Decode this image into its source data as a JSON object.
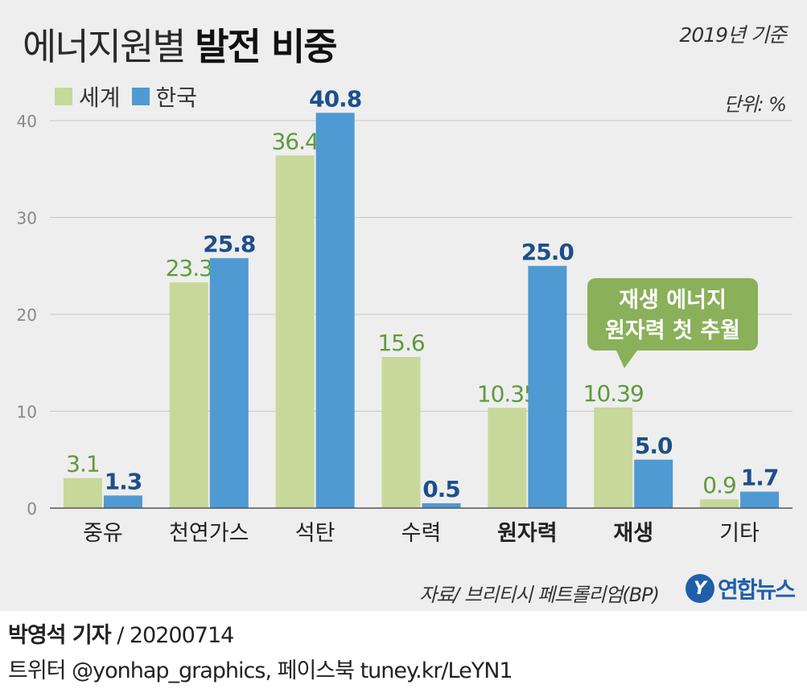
{
  "header": {
    "title_light": "에너지원별",
    "title_bold": "발전 비중",
    "basis": "2019년 기준",
    "unit": "단위: %"
  },
  "chart_data": {
    "type": "bar",
    "categories": [
      "중유",
      "천연가스",
      "석탄",
      "수력",
      "원자력",
      "재생",
      "기타"
    ],
    "bold_categories": [
      "원자력",
      "재생"
    ],
    "series": [
      {
        "name": "세계",
        "values": [
          3.1,
          23.3,
          36.4,
          15.6,
          10.35,
          10.39,
          0.9
        ],
        "labels": [
          "3.1",
          "23.3",
          "36.4",
          "15.6",
          "10.35",
          "10.39",
          "0.9"
        ],
        "color": "#c7d89a",
        "label_color": "#5e9b3c"
      },
      {
        "name": "한국",
        "values": [
          1.3,
          25.8,
          40.8,
          0.5,
          25.0,
          5.0,
          1.7
        ],
        "labels": [
          "1.3",
          "25.8",
          "40.8",
          "0.5",
          "25.0",
          "5.0",
          "1.7"
        ],
        "color": "#4f9ad2",
        "label_color": "#1d4f8a"
      }
    ],
    "ylim": [
      0,
      40
    ],
    "yticks": [
      0,
      10,
      20,
      30,
      40
    ],
    "grid": true,
    "legend": "top-left",
    "callout": {
      "line1": "재생 에너지",
      "line2": "원자력 첫 추월",
      "color": "#8ab05a",
      "target": "재생"
    }
  },
  "footer": {
    "source": "자료/ 브리티시 페트롤리엄(BP)",
    "logo_mark": "Y",
    "logo_text": "연합뉴스",
    "reporter": "박영석 기자",
    "date": "/  20200714",
    "social": "트위터 @yonhap_graphics, 페이스북 tuney.kr/LeYN1"
  }
}
